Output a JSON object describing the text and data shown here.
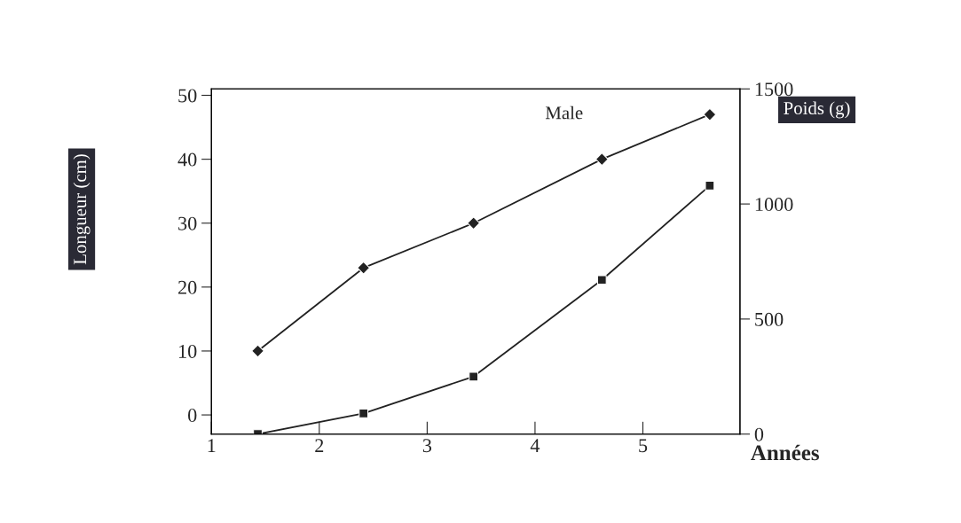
{
  "chart_data": {
    "type": "line",
    "xlabel": "Années",
    "ylabel": "Longueur (cm)",
    "y2label": "Poids (g)",
    "xlim": [
      1,
      5.9
    ],
    "xticks": [
      1,
      2,
      3,
      4,
      5
    ],
    "ylim": [
      -3,
      51
    ],
    "yticks": [
      0,
      10,
      20,
      30,
      40,
      50
    ],
    "y2lim": [
      0,
      1500
    ],
    "y2ticks": [
      0,
      500,
      1000,
      1500
    ],
    "grid": false,
    "legend": false,
    "line_style": "solid",
    "series": [
      {
        "name": "Male",
        "color": "#222222",
        "marker": "diamond",
        "x": [
          1.43,
          2.41,
          3.43,
          4.62,
          5.62
        ],
        "values": [
          10,
          23,
          30,
          40,
          47
        ]
      },
      {
        "color": "#222222",
        "marker": "square",
        "axis": "y2",
        "x": [
          1.43,
          2.41,
          3.43,
          4.62,
          5.62
        ],
        "values": [
          0,
          90,
          250,
          670,
          1080
        ]
      }
    ]
  }
}
